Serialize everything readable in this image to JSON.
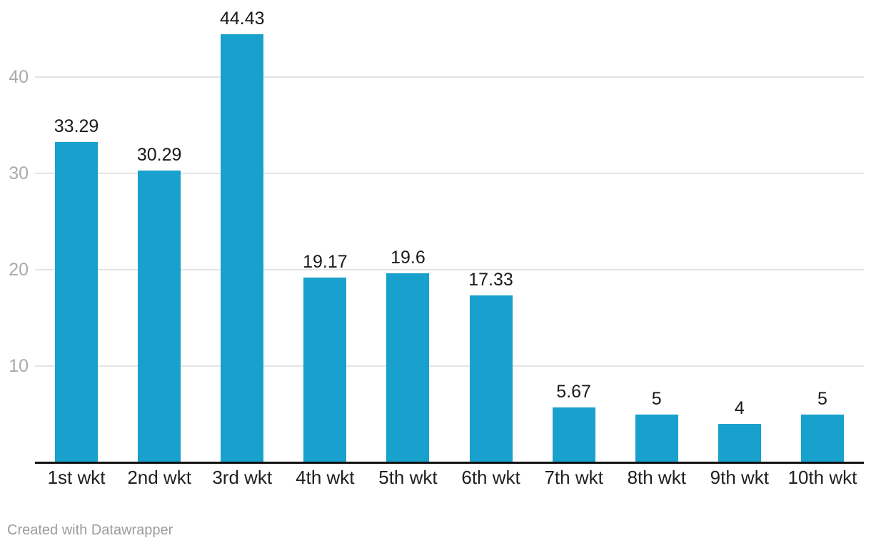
{
  "chart_data": {
    "type": "bar",
    "categories": [
      "1st wkt",
      "2nd wkt",
      "3rd wkt",
      "4th wkt",
      "5th wkt",
      "6th wkt",
      "7th wkt",
      "8th wkt",
      "9th wkt",
      "10th wkt"
    ],
    "values": [
      33.29,
      30.29,
      44.43,
      19.17,
      19.6,
      17.33,
      5.67,
      5,
      4,
      5
    ],
    "value_labels": [
      "33.29",
      "30.29",
      "44.43",
      "19.17",
      "19.6",
      "17.33",
      "5.67",
      "5",
      "4",
      "5"
    ],
    "title": "",
    "xlabel": "",
    "ylabel": "",
    "ylim": [
      0,
      48
    ],
    "yticks": [
      10,
      20,
      30,
      40
    ],
    "grid": "horizontal-only",
    "legend": "none"
  },
  "colors": {
    "bar": "#18a1cd",
    "gridline": "#e4e4e4",
    "axis_line": "#111111",
    "y_tick_label": "#aaaaaa",
    "x_tick_label": "#202020",
    "value_label": "#1a1a1a",
    "credit": "#9c9c9c",
    "background": "#ffffff"
  },
  "footer": {
    "credit": "Created with Datawrapper"
  }
}
